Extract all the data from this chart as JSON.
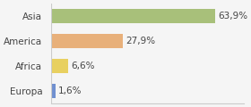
{
  "categories": [
    "Europa",
    "Africa",
    "America",
    "Asia"
  ],
  "values": [
    63.9,
    27.9,
    6.6,
    1.6
  ],
  "labels": [
    "63,9%",
    "27,9%",
    "6,6%",
    "1,6%"
  ],
  "bar_colors": [
    "#a8c07a",
    "#e8b07a",
    "#e8d060",
    "#7090d0"
  ],
  "background_color": "#f5f5f5",
  "xlim": [
    0,
    75
  ],
  "label_fontsize": 7.5,
  "category_fontsize": 7.5
}
